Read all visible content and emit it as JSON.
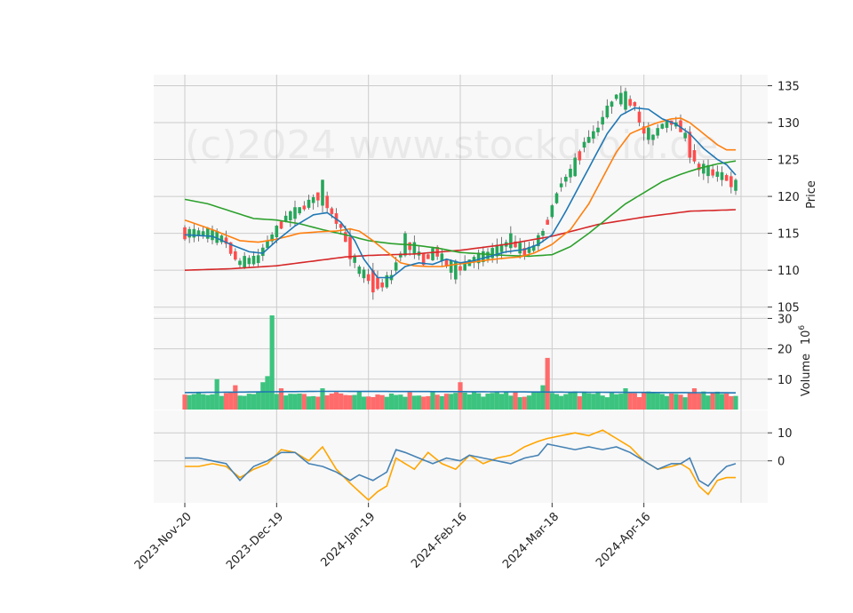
{
  "chart_data": {
    "type": "candlestick-with-indicators",
    "watermark": "(c)2024 www.stockdroid.de",
    "x_ticks": [
      "2023-Nov-20",
      "2023-Dec-19",
      "2024-Jan-19",
      "2024-Feb-16",
      "2024-Mar-18",
      "2024-Apr-16"
    ],
    "x_tick_index": [
      0,
      20,
      40,
      60,
      80,
      100
    ],
    "n_bars": 121,
    "colors": {
      "up": "#26a65b",
      "down": "#ff4d4d",
      "ma_short": "#1f77b4",
      "ma_mid": "#ff7f0e",
      "ma_long": "#2ca02c",
      "ma_very_long": "#d62728",
      "ind_a": "#4682b4",
      "ind_b": "#ffa500",
      "grid": "#cccccc",
      "panel_bg": "#f8f8f8"
    },
    "price_panel": {
      "ylabel": "Price",
      "ylim": [
        104,
        136.5
      ],
      "yticks": [
        105,
        110,
        115,
        120,
        125,
        130,
        135
      ],
      "anchors": [
        [
          0,
          115
        ],
        [
          5,
          115
        ],
        [
          9,
          114
        ],
        [
          12,
          111
        ],
        [
          16,
          111.5
        ],
        [
          18,
          113.5
        ],
        [
          22,
          117
        ],
        [
          26,
          118.5
        ],
        [
          30,
          120.5
        ],
        [
          32,
          118
        ],
        [
          34,
          116
        ],
        [
          36,
          113
        ],
        [
          38,
          110
        ],
        [
          41,
          108.5
        ],
        [
          43,
          108
        ],
        [
          45,
          109
        ],
        [
          48,
          113.5
        ],
        [
          50,
          113
        ],
        [
          52,
          111.5
        ],
        [
          55,
          112.5
        ],
        [
          57,
          111
        ],
        [
          59,
          110
        ],
        [
          61,
          110.5
        ],
        [
          63,
          111.5
        ],
        [
          66,
          112
        ],
        [
          69,
          113
        ],
        [
          71,
          114
        ],
        [
          74,
          112.5
        ],
        [
          76,
          113
        ],
        [
          78,
          115
        ],
        [
          80,
          118
        ],
        [
          82,
          121.5
        ],
        [
          85,
          124
        ],
        [
          87,
          127
        ],
        [
          90,
          129
        ],
        [
          92,
          131.5
        ],
        [
          94,
          133.5
        ],
        [
          96,
          133
        ],
        [
          98,
          132.5
        ],
        [
          100,
          129
        ],
        [
          102,
          128
        ],
        [
          104,
          129.5
        ],
        [
          106,
          130
        ],
        [
          108,
          129.5
        ],
        [
          110,
          127
        ],
        [
          112,
          124
        ],
        [
          114,
          123.5
        ],
        [
          116,
          123
        ],
        [
          118,
          122.5
        ],
        [
          120,
          121.5
        ]
      ],
      "ma_short_anchors": [
        [
          0,
          114.8
        ],
        [
          6,
          114.6
        ],
        [
          10,
          113.5
        ],
        [
          14,
          112.5
        ],
        [
          17,
          112.3
        ],
        [
          20,
          114
        ],
        [
          24,
          116
        ],
        [
          28,
          117.5
        ],
        [
          31,
          117.8
        ],
        [
          34,
          116.5
        ],
        [
          37,
          114
        ],
        [
          39,
          111.5
        ],
        [
          42,
          109
        ],
        [
          45,
          109
        ],
        [
          48,
          110.5
        ],
        [
          51,
          111
        ],
        [
          54,
          110.8
        ],
        [
          57,
          111.5
        ],
        [
          60,
          111
        ],
        [
          63,
          111.3
        ],
        [
          66,
          111.8
        ],
        [
          70,
          112.5
        ],
        [
          74,
          112.8
        ],
        [
          77,
          113.5
        ],
        [
          80,
          114.8
        ],
        [
          83,
          118
        ],
        [
          86,
          121.5
        ],
        [
          89,
          125
        ],
        [
          92,
          128.5
        ],
        [
          95,
          131
        ],
        [
          98,
          132
        ],
        [
          101,
          131.8
        ],
        [
          104,
          130.5
        ],
        [
          107,
          129.8
        ],
        [
          110,
          128.5
        ],
        [
          113,
          126.5
        ],
        [
          116,
          125
        ],
        [
          118,
          124.3
        ],
        [
          120,
          122.9
        ]
      ],
      "ma_mid_anchors": [
        [
          0,
          116.8
        ],
        [
          6,
          115.5
        ],
        [
          12,
          114
        ],
        [
          16,
          113.8
        ],
        [
          20,
          114.2
        ],
        [
          25,
          115
        ],
        [
          29,
          115.2
        ],
        [
          33,
          115.3
        ],
        [
          36,
          115.6
        ],
        [
          38,
          115.3
        ],
        [
          41,
          114
        ],
        [
          44,
          112.5
        ],
        [
          47,
          111
        ],
        [
          50,
          110.6
        ],
        [
          53,
          110.5
        ],
        [
          56,
          110.5
        ],
        [
          59,
          110.8
        ],
        [
          62,
          111
        ],
        [
          65,
          111.3
        ],
        [
          69,
          111.6
        ],
        [
          73,
          111.8
        ],
        [
          76,
          112.3
        ],
        [
          80,
          113.5
        ],
        [
          84,
          115.5
        ],
        [
          88,
          119
        ],
        [
          91,
          122.5
        ],
        [
          94,
          126
        ],
        [
          97,
          128.5
        ],
        [
          100,
          129.3
        ],
        [
          103,
          130
        ],
        [
          106,
          130.5
        ],
        [
          108,
          130.6
        ],
        [
          110,
          130
        ],
        [
          113,
          128.5
        ],
        [
          116,
          127
        ],
        [
          118,
          126.3
        ],
        [
          120,
          126.3
        ]
      ],
      "ma_long_anchors": [
        [
          0,
          119.6
        ],
        [
          5,
          119
        ],
        [
          10,
          118
        ],
        [
          15,
          117
        ],
        [
          20,
          116.8
        ],
        [
          25,
          116.3
        ],
        [
          30,
          115.5
        ],
        [
          35,
          114.8
        ],
        [
          40,
          114
        ],
        [
          45,
          113.6
        ],
        [
          50,
          113.4
        ],
        [
          55,
          113
        ],
        [
          60,
          112.4
        ],
        [
          65,
          112.2
        ],
        [
          70,
          112
        ],
        [
          75,
          111.9
        ],
        [
          80,
          112.1
        ],
        [
          84,
          113.2
        ],
        [
          88,
          115
        ],
        [
          92,
          117
        ],
        [
          96,
          119
        ],
        [
          100,
          120.5
        ],
        [
          104,
          122
        ],
        [
          108,
          123
        ],
        [
          112,
          123.8
        ],
        [
          116,
          124.4
        ],
        [
          120,
          124.8
        ]
      ],
      "ma_very_long_anchors": [
        [
          0,
          110
        ],
        [
          10,
          110.2
        ],
        [
          20,
          110.6
        ],
        [
          30,
          111.4
        ],
        [
          35,
          111.8
        ],
        [
          40,
          112
        ],
        [
          50,
          112.2
        ],
        [
          60,
          112.7
        ],
        [
          70,
          113.5
        ],
        [
          80,
          114.6
        ],
        [
          90,
          116.2
        ],
        [
          100,
          117.2
        ],
        [
          110,
          118
        ],
        [
          120,
          118.2
        ]
      ],
      "spikes": [
        [
          30,
          "up",
          3.5
        ],
        [
          36,
          "down",
          -3
        ],
        [
          41,
          "down",
          -3
        ],
        [
          48,
          "up",
          3
        ],
        [
          59,
          "up",
          2.5
        ],
        [
          71,
          "up",
          2
        ],
        [
          85,
          "up",
          2.5
        ],
        [
          96,
          "up",
          2.5
        ],
        [
          110,
          "down",
          -3.5
        ]
      ]
    },
    "volume_panel": {
      "ylabel": "Volume",
      "exponent": "6",
      "ylim": [
        0,
        31
      ],
      "yticks": [
        10,
        20,
        30
      ],
      "base_volume": [
        4,
        6
      ],
      "spikes": [
        [
          7,
          10
        ],
        [
          11,
          8
        ],
        [
          17,
          9
        ],
        [
          18,
          11
        ],
        [
          19,
          31
        ],
        [
          21,
          7
        ],
        [
          30,
          7
        ],
        [
          38,
          6
        ],
        [
          54,
          6
        ],
        [
          60,
          9
        ],
        [
          78,
          8
        ],
        [
          79,
          17
        ],
        [
          85,
          6
        ],
        [
          96,
          7
        ],
        [
          111,
          7
        ]
      ],
      "avg_line": [
        [
          0,
          5.6
        ],
        [
          30,
          6
        ],
        [
          60,
          5.9
        ],
        [
          90,
          5.7
        ],
        [
          120,
          5.5
        ]
      ]
    },
    "indicator_panel": {
      "ylim": [
        -15,
        18
      ],
      "yticks": [
        0,
        10
      ],
      "line_a_anchors": [
        [
          0,
          1
        ],
        [
          3,
          1
        ],
        [
          6,
          0
        ],
        [
          9,
          -1
        ],
        [
          12,
          -7
        ],
        [
          15,
          -2
        ],
        [
          18,
          0
        ],
        [
          21,
          3
        ],
        [
          24,
          3
        ],
        [
          27,
          -1
        ],
        [
          30,
          -2
        ],
        [
          33,
          -4
        ],
        [
          36,
          -7
        ],
        [
          38,
          -5
        ],
        [
          41,
          -7
        ],
        [
          44,
          -4
        ],
        [
          46,
          4
        ],
        [
          48,
          3
        ],
        [
          51,
          1
        ],
        [
          54,
          -1
        ],
        [
          57,
          1
        ],
        [
          60,
          0
        ],
        [
          62,
          2
        ],
        [
          65,
          1
        ],
        [
          68,
          0
        ],
        [
          71,
          -1
        ],
        [
          74,
          1
        ],
        [
          77,
          2
        ],
        [
          79,
          6
        ],
        [
          82,
          5
        ],
        [
          85,
          4
        ],
        [
          88,
          5
        ],
        [
          91,
          4
        ],
        [
          94,
          5
        ],
        [
          97,
          3
        ],
        [
          100,
          0
        ],
        [
          103,
          -3
        ],
        [
          106,
          -1
        ],
        [
          108,
          -1
        ],
        [
          110,
          1
        ],
        [
          112,
          -7
        ],
        [
          114,
          -9
        ],
        [
          116,
          -5
        ],
        [
          118,
          -2
        ],
        [
          120,
          -1
        ]
      ],
      "line_b_anchors": [
        [
          0,
          -2
        ],
        [
          3,
          -2
        ],
        [
          6,
          -1
        ],
        [
          9,
          -2
        ],
        [
          12,
          -6
        ],
        [
          15,
          -3
        ],
        [
          18,
          -1
        ],
        [
          21,
          4
        ],
        [
          24,
          3
        ],
        [
          27,
          0
        ],
        [
          30,
          5
        ],
        [
          33,
          -3
        ],
        [
          36,
          -8
        ],
        [
          38,
          -11
        ],
        [
          40,
          -14
        ],
        [
          42,
          -11
        ],
        [
          44,
          -9
        ],
        [
          46,
          1
        ],
        [
          48,
          -1
        ],
        [
          50,
          -3
        ],
        [
          53,
          3
        ],
        [
          56,
          -1
        ],
        [
          59,
          -3
        ],
        [
          62,
          2
        ],
        [
          65,
          -1
        ],
        [
          68,
          1
        ],
        [
          71,
          2
        ],
        [
          74,
          5
        ],
        [
          77,
          7
        ],
        [
          79,
          8
        ],
        [
          82,
          9
        ],
        [
          85,
          10
        ],
        [
          88,
          9
        ],
        [
          91,
          11
        ],
        [
          94,
          8
        ],
        [
          97,
          5
        ],
        [
          100,
          0
        ],
        [
          103,
          -3
        ],
        [
          106,
          -2
        ],
        [
          108,
          -1
        ],
        [
          110,
          -3
        ],
        [
          112,
          -9
        ],
        [
          114,
          -12
        ],
        [
          116,
          -7
        ],
        [
          118,
          -6
        ],
        [
          120,
          -6
        ]
      ]
    }
  }
}
